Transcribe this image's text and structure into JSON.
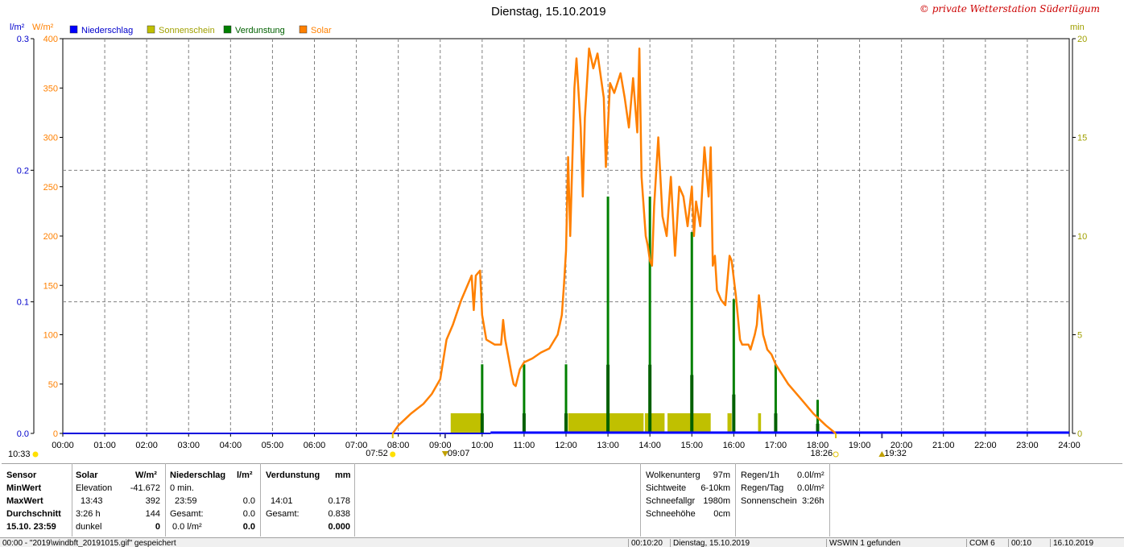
{
  "title": "Dienstag, 15.10.2019",
  "copyright": "© private Wetterstation Süderlügum",
  "colors": {
    "rain": "#0000ff",
    "sunshine": "#c0c000",
    "evaporation": "#008000",
    "solar": "#ff8000",
    "grid": "#808080"
  },
  "chart_data": {
    "type": "line",
    "title": "Dienstag, 15.10.2019",
    "x_unit": "time of day",
    "x_range": [
      "00:00",
      "24:00"
    ],
    "x_ticks": [
      "00:00",
      "01:00",
      "02:00",
      "03:00",
      "04:00",
      "05:00",
      "06:00",
      "07:00",
      "08:00",
      "09:00",
      "10:00",
      "11:00",
      "12:00",
      "13:00",
      "14:00",
      "15:00",
      "16:00",
      "17:00",
      "18:00",
      "19:00",
      "20:00",
      "21:00",
      "22:00",
      "23:00",
      "24:00"
    ],
    "axes": {
      "rain": {
        "unit": "l/m²",
        "range": [
          0,
          0.3
        ],
        "ticks": [
          "0.0",
          "0.1",
          "0.2",
          "0.3"
        ]
      },
      "solar": {
        "unit": "W/m²",
        "range": [
          0,
          400
        ],
        "ticks": [
          "0",
          "50",
          "100",
          "150",
          "200",
          "250",
          "300",
          "350",
          "400"
        ]
      },
      "minutes": {
        "unit": "min",
        "range": [
          0,
          20
        ],
        "ticks": [
          "0",
          "5",
          "10",
          "15",
          "20"
        ]
      }
    },
    "grid": true,
    "legend": [
      {
        "name": "Niederschlag",
        "color": "#0000ff"
      },
      {
        "name": "Sonnenschein",
        "color": "#c0c000"
      },
      {
        "name": "Verdunstung",
        "color": "#008000"
      },
      {
        "name": "Solar",
        "color": "#ff8000"
      }
    ],
    "series": [
      {
        "name": "Solar",
        "axis": "solar",
        "points": [
          [
            7.87,
            0
          ],
          [
            8.0,
            8
          ],
          [
            8.3,
            20
          ],
          [
            8.6,
            30
          ],
          [
            8.8,
            40
          ],
          [
            9.0,
            55
          ],
          [
            9.15,
            95
          ],
          [
            9.3,
            110
          ],
          [
            9.5,
            135
          ],
          [
            9.7,
            155
          ],
          [
            9.75,
            160
          ],
          [
            9.8,
            125
          ],
          [
            9.85,
            160
          ],
          [
            9.95,
            165
          ],
          [
            10.0,
            120
          ],
          [
            10.1,
            95
          ],
          [
            10.3,
            90
          ],
          [
            10.45,
            90
          ],
          [
            10.5,
            115
          ],
          [
            10.55,
            95
          ],
          [
            10.7,
            60
          ],
          [
            10.75,
            50
          ],
          [
            10.8,
            48
          ],
          [
            10.9,
            65
          ],
          [
            11.0,
            72
          ],
          [
            11.2,
            76
          ],
          [
            11.4,
            82
          ],
          [
            11.6,
            86
          ],
          [
            11.8,
            100
          ],
          [
            11.9,
            120
          ],
          [
            11.95,
            150
          ],
          [
            12.0,
            185
          ],
          [
            12.05,
            280
          ],
          [
            12.1,
            200
          ],
          [
            12.2,
            350
          ],
          [
            12.25,
            380
          ],
          [
            12.35,
            310
          ],
          [
            12.4,
            240
          ],
          [
            12.45,
            320
          ],
          [
            12.55,
            390
          ],
          [
            12.65,
            370
          ],
          [
            12.75,
            385
          ],
          [
            12.85,
            355
          ],
          [
            12.9,
            340
          ],
          [
            12.95,
            270
          ],
          [
            13.05,
            355
          ],
          [
            13.15,
            345
          ],
          [
            13.3,
            365
          ],
          [
            13.4,
            340
          ],
          [
            13.5,
            310
          ],
          [
            13.6,
            360
          ],
          [
            13.7,
            305
          ],
          [
            13.75,
            390
          ],
          [
            13.8,
            260
          ],
          [
            13.9,
            200
          ],
          [
            13.95,
            190
          ],
          [
            14.0,
            175
          ],
          [
            14.05,
            170
          ],
          [
            14.1,
            230
          ],
          [
            14.2,
            300
          ],
          [
            14.3,
            220
          ],
          [
            14.4,
            200
          ],
          [
            14.5,
            260
          ],
          [
            14.6,
            180
          ],
          [
            14.7,
            250
          ],
          [
            14.8,
            240
          ],
          [
            14.9,
            210
          ],
          [
            15.0,
            250
          ],
          [
            15.05,
            200
          ],
          [
            15.1,
            235
          ],
          [
            15.2,
            210
          ],
          [
            15.3,
            290
          ],
          [
            15.4,
            240
          ],
          [
            15.45,
            290
          ],
          [
            15.5,
            170
          ],
          [
            15.55,
            180
          ],
          [
            15.6,
            145
          ],
          [
            15.7,
            135
          ],
          [
            15.8,
            130
          ],
          [
            15.9,
            180
          ],
          [
            15.95,
            175
          ],
          [
            16.05,
            140
          ],
          [
            16.15,
            95
          ],
          [
            16.2,
            90
          ],
          [
            16.35,
            90
          ],
          [
            16.4,
            85
          ],
          [
            16.5,
            100
          ],
          [
            16.55,
            110
          ],
          [
            16.6,
            140
          ],
          [
            16.7,
            100
          ],
          [
            16.8,
            85
          ],
          [
            16.9,
            80
          ],
          [
            17.0,
            70
          ],
          [
            17.3,
            50
          ],
          [
            17.6,
            35
          ],
          [
            17.9,
            20
          ],
          [
            18.2,
            8
          ],
          [
            18.43,
            0
          ]
        ]
      },
      {
        "name": "Sonnenschein",
        "axis": "minutes",
        "color": "#c0c000",
        "bars": [
          [
            9.25,
            10.0,
            1.0
          ],
          [
            12.05,
            13.85,
            1.0
          ],
          [
            13.88,
            14.35,
            1.0
          ],
          [
            14.42,
            15.45,
            1.0
          ],
          [
            15.85,
            15.95,
            1.0
          ],
          [
            16.58,
            16.65,
            1.0
          ]
        ]
      },
      {
        "name": "Verdunstung",
        "axis": "minutes",
        "color": "#008000",
        "bars": [
          [
            10.0,
            3.5
          ],
          [
            11.0,
            3.5
          ],
          [
            12.0,
            3.5
          ],
          [
            13.0,
            12.0
          ],
          [
            14.0,
            12.0
          ],
          [
            15.0,
            10.2
          ],
          [
            16.0,
            6.8
          ],
          [
            17.0,
            3.5
          ],
          [
            18.0,
            1.7
          ]
        ]
      },
      {
        "name": "Niederschlag",
        "axis": "rain",
        "values": [
          0.0
        ]
      }
    ],
    "markers": {
      "sunrise": "07:52",
      "sunset": "18:26",
      "moonrise": "09:07",
      "moonset": "19:32",
      "left_time": "10:33"
    }
  },
  "table": {
    "sensor": {
      "header": "Sensor",
      "rows": [
        "MinWert",
        "MaxWert",
        "Durchschnitt",
        "15.10.  23:59"
      ]
    },
    "solar": {
      "header": "Solar",
      "unit": "W/m²",
      "left": [
        "Elevation",
        "13:43",
        "3:26 h",
        "dunkel"
      ],
      "right": [
        "-41.672",
        "392",
        "144",
        "0"
      ]
    },
    "rain": {
      "header": "Niederschlag",
      "unit": "l/m²",
      "left": [
        "0 min.",
        "23:59",
        "Gesamt:",
        "0.0 l/m²"
      ],
      "right": [
        "",
        "0.0",
        "0.0",
        "0.0"
      ]
    },
    "evap": {
      "header": "Verdunstung",
      "unit": "mm",
      "left": [
        "",
        "14:01",
        "Gesamt:",
        ""
      ],
      "right": [
        "",
        "0.178",
        "0.838",
        "0.000"
      ]
    },
    "weather": {
      "labels": [
        "Wolkenunterg",
        "Sichtweite",
        "Schneefallgr",
        "Schneehöhe"
      ],
      "values": [
        "97m",
        "6-10km",
        "1980m",
        "0cm"
      ]
    },
    "precip": {
      "labels": [
        "Regen/1h",
        "Regen/Tag",
        "Sonnenschein"
      ],
      "values": [
        "0.0l/m²",
        "0.0l/m²",
        "3:26h"
      ]
    }
  },
  "status_bar": [
    "00:00 - \"2019\\windbft_20191015.gif\" gespeichert",
    "00:10:20",
    "Dienstag, 15.10.2019",
    "WSWIN 1 gefunden",
    "COM 6",
    "00:10",
    "16.10.2019"
  ]
}
